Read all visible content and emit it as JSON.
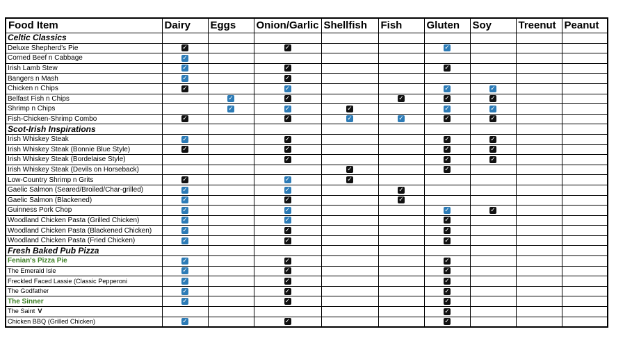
{
  "headers": [
    "Food Item",
    "Dairy",
    "Eggs",
    "Onion/Garlic",
    "Shellfish",
    "Fish",
    "Gluten",
    "Soy",
    "Treenut",
    "Peanut"
  ],
  "colors": {
    "check_dark": "#111111",
    "check_blue": "#2c7bb6",
    "green_text": "#3a7d22"
  },
  "rows": [
    {
      "type": "section",
      "name": "Celtic Classics"
    },
    {
      "name": "Deluxe Shepherd's Pie",
      "marks": [
        "k",
        "",
        "k",
        "",
        "",
        "b",
        "",
        "",
        ""
      ]
    },
    {
      "name": "Corned Beef n Cabbage",
      "marks": [
        "b",
        "",
        "",
        "",
        "",
        "",
        "",
        "",
        ""
      ]
    },
    {
      "name": "Irish Lamb Stew",
      "marks": [
        "b",
        "",
        "k",
        "",
        "",
        "k",
        "",
        "",
        ""
      ]
    },
    {
      "name": "Bangers n Mash",
      "marks": [
        "b",
        "",
        "k",
        "",
        "",
        "",
        "",
        "",
        ""
      ]
    },
    {
      "name": "Chicken n Chips",
      "marks": [
        "k",
        "",
        "b",
        "",
        "",
        "b",
        "b",
        "",
        ""
      ]
    },
    {
      "name": "Belfast Fish n Chips",
      "marks": [
        "",
        "b",
        "k",
        "",
        "k",
        "k",
        "k",
        "",
        ""
      ]
    },
    {
      "name": "Shrimp n Chips",
      "marks": [
        "",
        "b",
        "b",
        "k",
        "",
        "b",
        "b",
        "",
        ""
      ]
    },
    {
      "name": "Fish-Chicken-Shrimp Combo",
      "marks": [
        "k",
        "",
        "k",
        "b",
        "b",
        "k",
        "k",
        "",
        ""
      ]
    },
    {
      "type": "section",
      "name": "Scot-Irish Inspirations"
    },
    {
      "name": "Irish Whiskey Steak",
      "marks": [
        "b",
        "",
        "k",
        "",
        "",
        "k",
        "k",
        "",
        ""
      ]
    },
    {
      "name": "Irish Whiskey Steak (Bonnie Blue Style)",
      "marks": [
        "k",
        "",
        "k",
        "",
        "",
        "k",
        "k",
        "",
        ""
      ]
    },
    {
      "name": "Irish Whiskey Steak (Bordelaise Style)",
      "marks": [
        "",
        "",
        "k",
        "",
        "",
        "k",
        "k",
        "",
        ""
      ]
    },
    {
      "name": "Irish Whiskey Steak (Devils on Horseback)",
      "marks": [
        "",
        "",
        "",
        "k",
        "",
        "k",
        "",
        "",
        ""
      ]
    },
    {
      "name": "Low-Country Shrimp n Grits",
      "marks": [
        "k",
        "",
        "b",
        "k",
        "",
        "",
        "",
        "",
        ""
      ]
    },
    {
      "name": "Gaelic Salmon (Seared/Broiled/Char-grilled)",
      "marks": [
        "b",
        "",
        "b",
        "",
        "k",
        "",
        "",
        "",
        ""
      ]
    },
    {
      "name": "Gaelic Salmon (Blackened)",
      "marks": [
        "b",
        "",
        "k",
        "",
        "k",
        "",
        "",
        "",
        ""
      ]
    },
    {
      "name": "Guinness Pork Chop",
      "marks": [
        "b",
        "",
        "b",
        "",
        "",
        "b",
        "k",
        "",
        ""
      ]
    },
    {
      "name": "Woodland Chicken Pasta (Grilled Chicken)",
      "marks": [
        "b",
        "",
        "b",
        "",
        "",
        "k",
        "",
        "",
        ""
      ]
    },
    {
      "name": "Woodland Chicken Pasta (Blackened Chicken)",
      "marks": [
        "b",
        "",
        "k",
        "",
        "",
        "k",
        "",
        "",
        ""
      ]
    },
    {
      "name": "Woodland Chicken Pasta (Fried Chicken)",
      "marks": [
        "b",
        "",
        "k",
        "",
        "",
        "k",
        "",
        "",
        ""
      ]
    },
    {
      "type": "section",
      "name": "Fresh Baked Pub Pizza"
    },
    {
      "name": "Fenian's Pizza Pie",
      "style": "green",
      "marks": [
        "b",
        "",
        "k",
        "",
        "",
        "k",
        "",
        "",
        ""
      ]
    },
    {
      "name": "The Emerald Isle",
      "style": "small",
      "marks": [
        "b",
        "",
        "k",
        "",
        "",
        "k",
        "",
        "",
        ""
      ]
    },
    {
      "name": "Freckled Faced Lassie (Classic Pepperoni",
      "style": "small",
      "marks": [
        "b",
        "",
        "k",
        "",
        "",
        "k",
        "",
        "",
        ""
      ]
    },
    {
      "name": "The Godfather",
      "style": "small",
      "marks": [
        "b",
        "",
        "k",
        "",
        "",
        "k",
        "",
        "",
        ""
      ]
    },
    {
      "name": "The Sinner",
      "style": "green",
      "marks": [
        "b",
        "",
        "k",
        "",
        "",
        "k",
        "",
        "",
        ""
      ]
    },
    {
      "name": "The Saint",
      "suffix": "V",
      "style": "small",
      "marks": [
        "",
        "",
        "",
        "",
        "",
        "k",
        "",
        "",
        ""
      ]
    },
    {
      "name": "Chicken BBQ (Grilled Chicken)",
      "style": "small",
      "marks": [
        "b",
        "",
        "k",
        "",
        "",
        "k",
        "",
        "",
        ""
      ]
    }
  ]
}
